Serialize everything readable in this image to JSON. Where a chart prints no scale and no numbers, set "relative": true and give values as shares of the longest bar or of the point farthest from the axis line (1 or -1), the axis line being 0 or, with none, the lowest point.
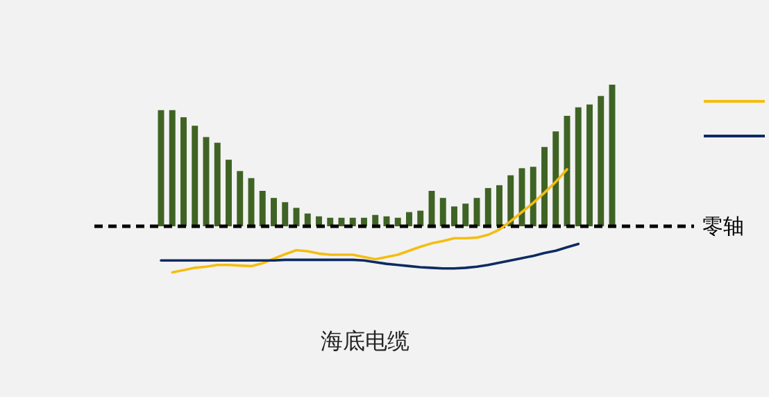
{
  "chart_data": [
    {
      "type": "bar",
      "title": "海底电缆",
      "relative": true,
      "categories": [
        null,
        null,
        null,
        null,
        null,
        null,
        null,
        null,
        null,
        null,
        null,
        null,
        null,
        null,
        null,
        null,
        null,
        null,
        null,
        null,
        null,
        null,
        null,
        null,
        null,
        null,
        null,
        null,
        null,
        null,
        null,
        null,
        null,
        null,
        null,
        null,
        null,
        null,
        null,
        null,
        null
      ],
      "series": [
        {
          "color": "#3f6324",
          "values": [
            0.82,
            0.82,
            0.77,
            0.71,
            0.63,
            0.59,
            0.47,
            0.39,
            0.34,
            0.25,
            0.2,
            0.17,
            0.13,
            0.09,
            0.07,
            0.06,
            0.06,
            0.06,
            0.06,
            0.08,
            0.07,
            0.06,
            0.1,
            0.11,
            0.25,
            0.2,
            0.14,
            0.16,
            0.2,
            0.27,
            0.29,
            0.36,
            0.41,
            0.42,
            0.56,
            0.67,
            0.78,
            0.84,
            0.86,
            0.92,
            1
          ]
        }
      ]
    },
    {
      "type": "line",
      "relative": true,
      "legend": "right",
      "ref_lines": [
        {
          "axis": "y",
          "value": 0,
          "label": "零轴",
          "color": "#000000",
          "line_style": "dashed"
        }
      ],
      "categories": [
        null,
        null,
        null,
        null,
        null,
        null,
        null,
        null,
        null,
        null,
        null,
        null,
        null,
        null,
        null,
        null,
        null,
        null,
        null,
        null,
        null,
        null,
        null,
        null,
        null,
        null,
        null,
        null,
        null,
        null,
        null,
        null,
        null,
        null,
        null,
        null,
        null,
        null,
        null,
        null,
        null
      ],
      "series": [
        {
          "color": "#f5bd0f",
          "values": [
            null,
            -0.81,
            -0.77,
            -0.73,
            -0.71,
            -0.68,
            -0.68,
            -0.69,
            -0.7,
            -0.65,
            -0.57,
            -0.49,
            -0.42,
            -0.44,
            -0.48,
            -0.5,
            -0.5,
            -0.5,
            -0.54,
            -0.58,
            -0.54,
            -0.5,
            -0.43,
            -0.36,
            -0.3,
            -0.26,
            -0.21,
            -0.21,
            -0.2,
            -0.15,
            -0.06,
            0.09,
            0.25,
            0.41,
            0.59,
            0.78,
            1,
            null,
            null,
            null,
            null
          ]
        },
        {
          "color": "#0d2b63",
          "values": [
            -0.6,
            -0.6,
            -0.6,
            -0.6,
            -0.6,
            -0.6,
            -0.6,
            -0.6,
            -0.6,
            -0.6,
            -0.6,
            -0.59,
            -0.59,
            -0.59,
            -0.59,
            -0.59,
            -0.59,
            -0.59,
            -0.6,
            -0.63,
            -0.66,
            -0.68,
            -0.7,
            -0.72,
            -0.73,
            -0.74,
            -0.74,
            -0.73,
            -0.71,
            -0.68,
            -0.64,
            -0.6,
            -0.56,
            -0.52,
            -0.47,
            -0.43,
            -0.37,
            -0.31,
            null,
            null,
            null
          ]
        }
      ]
    }
  ]
}
